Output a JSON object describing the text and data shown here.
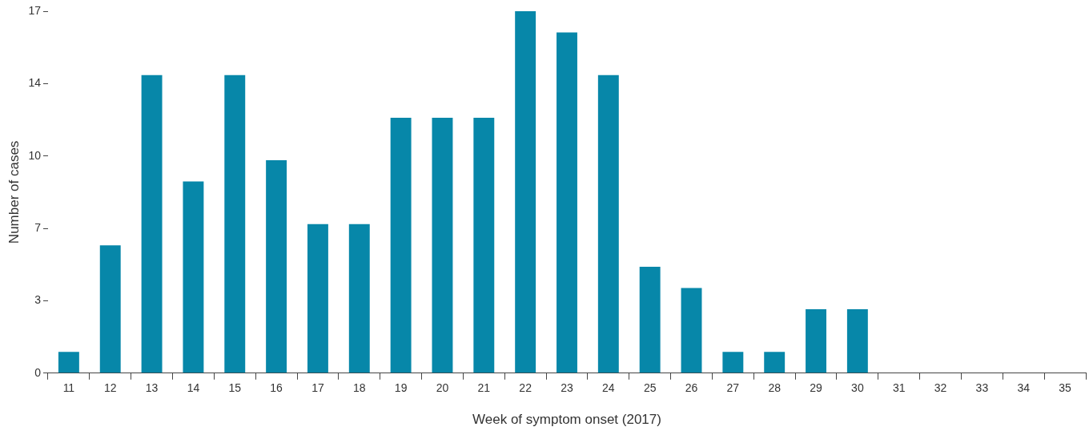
{
  "chart_data": {
    "type": "bar",
    "xlabel": "Week of symptom onset (2017)",
    "ylabel": "Number of cases",
    "categories": [
      "11",
      "12",
      "13",
      "14",
      "15",
      "16",
      "17",
      "18",
      "19",
      "20",
      "21",
      "22",
      "23",
      "24",
      "25",
      "26",
      "27",
      "28",
      "29",
      "30",
      "31",
      "32",
      "33",
      "34",
      "35"
    ],
    "values": [
      1,
      6,
      14,
      9,
      14,
      10,
      7,
      7,
      12,
      12,
      12,
      17,
      16,
      14,
      5,
      4,
      1,
      1,
      3,
      3,
      0,
      0,
      0,
      0,
      0
    ],
    "color": "#0787a9",
    "ylim": [
      0,
      17
    ],
    "yticks": [
      0,
      {
        "value": 3.4,
        "label": "3"
      },
      {
        "value": 6.8,
        "label": "7"
      },
      {
        "value": 10.2,
        "label": "10"
      },
      {
        "value": 13.6,
        "label": "14"
      },
      17
    ],
    "grid": false,
    "legend": false
  }
}
